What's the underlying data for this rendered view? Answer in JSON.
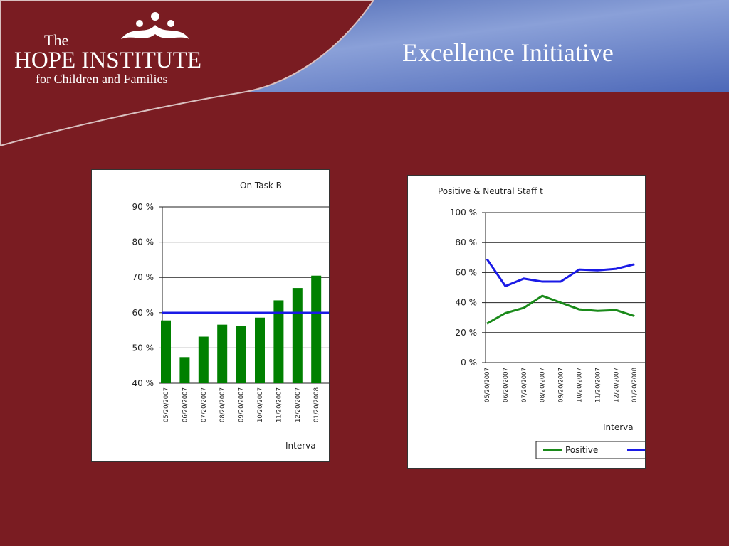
{
  "slide": {
    "title": "Excellence Initiative",
    "logo": {
      "line1": "The",
      "line2": "HOPE INSTITUTE",
      "line3": "for Children and Families"
    }
  },
  "chart_data": [
    {
      "type": "bar",
      "title": "On Task B",
      "x_label": "Interva",
      "categories": [
        "05/20/2007",
        "06/20/2007",
        "07/20/2007",
        "08/20/2007",
        "09/20/2007",
        "10/20/2007",
        "11/20/2007",
        "12/20/2007",
        "01/20/2008"
      ],
      "values": [
        57.8,
        47.4,
        53.2,
        56.6,
        56.2,
        58.6,
        63.5,
        67,
        70.5
      ],
      "color": "#008000",
      "target": 60,
      "target_color": "#1a1ae6",
      "ylim": [
        40,
        90
      ],
      "yticks": [
        {
          "value": 40,
          "label": "40 %"
        },
        {
          "value": 50,
          "label": "50 %"
        },
        {
          "value": 60,
          "label": "60 %"
        },
        {
          "value": 70,
          "label": "70 %"
        },
        {
          "value": 80,
          "label": "80 %"
        },
        {
          "value": 90,
          "label": "90 %"
        }
      ],
      "grid": true
    },
    {
      "type": "line",
      "title": "Positive & Neutral Staff t",
      "x_label": "Interva",
      "categories": [
        "05/20/2007",
        "06/20/2007",
        "07/20/2007",
        "08/20/2007",
        "09/20/2007",
        "10/20/2007",
        "11/20/2007",
        "12/20/2007",
        "01/20/2008"
      ],
      "series": [
        {
          "name": "Positive",
          "color": "#1a8a1a",
          "values": [
            26,
            33,
            36.5,
            44.5,
            40,
            35.5,
            34.5,
            35,
            31
          ]
        },
        {
          "color": "#1a1ae6",
          "values": [
            69,
            51,
            56,
            54,
            54,
            62,
            61.5,
            62.5,
            65.5
          ]
        }
      ],
      "ylim": [
        0,
        100
      ],
      "yticks": [
        {
          "value": 0,
          "label": "0 %"
        },
        {
          "value": 20,
          "label": "20 %"
        },
        {
          "value": 40,
          "label": "40 %"
        },
        {
          "value": 60,
          "label": "60 %"
        },
        {
          "value": 80,
          "label": "80 %"
        },
        {
          "value": 100,
          "label": "100 %"
        }
      ],
      "grid": true
    }
  ]
}
